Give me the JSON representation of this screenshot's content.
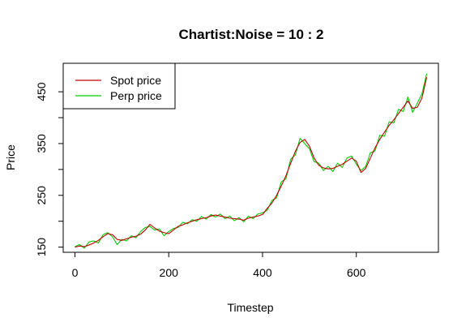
{
  "chart_data": {
    "type": "line",
    "title": "Chartist:Noise = 10 : 2",
    "xlabel": "Timestep",
    "ylabel": "Price",
    "xlim": [
      -25,
      775
    ],
    "ylim": [
      140,
      505
    ],
    "xticks": [
      0,
      200,
      400,
      600
    ],
    "xtick_labels": [
      "0",
      "200",
      "400",
      "600"
    ],
    "yticks": [
      150,
      200,
      250,
      300,
      350,
      400,
      450
    ],
    "ytick_labels": [
      "150",
      "",
      "250",
      "",
      "350",
      "",
      "450"
    ],
    "grid": false,
    "legend_position": "top-left",
    "series": [
      {
        "name": "Spot price",
        "color": "#c00000",
        "x": [
          0,
          10,
          20,
          30,
          40,
          50,
          60,
          70,
          80,
          90,
          100,
          110,
          120,
          130,
          140,
          150,
          160,
          170,
          180,
          190,
          200,
          210,
          220,
          230,
          240,
          250,
          260,
          270,
          280,
          290,
          300,
          310,
          320,
          330,
          340,
          350,
          360,
          370,
          380,
          390,
          400,
          410,
          420,
          430,
          440,
          450,
          460,
          470,
          480,
          490,
          500,
          510,
          520,
          530,
          540,
          550,
          560,
          570,
          580,
          590,
          600,
          610,
          620,
          630,
          640,
          650,
          660,
          670,
          680,
          690,
          700,
          710,
          720,
          730,
          740,
          750
        ],
        "values": [
          150,
          152,
          151,
          154,
          158,
          163,
          170,
          176,
          174,
          165,
          163,
          166,
          169,
          171,
          175,
          183,
          194,
          187,
          181,
          178,
          176,
          183,
          190,
          193,
          197,
          200,
          203,
          205,
          207,
          210,
          212,
          210,
          208,
          206,
          205,
          204,
          202,
          206,
          208,
          210,
          213,
          225,
          235,
          250,
          268,
          288,
          312,
          335,
          352,
          358,
          345,
          322,
          308,
          303,
          301,
          302,
          306,
          310,
          316,
          322,
          316,
          294,
          302,
          322,
          342,
          358,
          372,
          385,
          396,
          408,
          420,
          432,
          418,
          420,
          438,
          478
        ]
      },
      {
        "name": "Perp price",
        "color": "#00cc00",
        "x": [
          0,
          10,
          20,
          30,
          40,
          50,
          60,
          70,
          80,
          90,
          100,
          110,
          120,
          130,
          140,
          150,
          160,
          170,
          180,
          190,
          200,
          210,
          220,
          230,
          240,
          250,
          260,
          270,
          280,
          290,
          300,
          310,
          320,
          330,
          340,
          350,
          360,
          370,
          380,
          390,
          400,
          410,
          420,
          430,
          440,
          450,
          460,
          470,
          480,
          490,
          500,
          510,
          520,
          530,
          540,
          550,
          560,
          570,
          580,
          590,
          600,
          610,
          620,
          630,
          640,
          650,
          660,
          670,
          680,
          690,
          700,
          710,
          720,
          730,
          740,
          750
        ],
        "values": [
          151,
          155,
          148,
          160,
          162,
          158,
          174,
          178,
          170,
          155,
          165,
          162,
          172,
          168,
          180,
          188,
          190,
          183,
          185,
          172,
          180,
          186,
          188,
          198,
          195,
          203,
          200,
          209,
          204,
          213,
          208,
          214,
          205,
          210,
          201,
          207,
          199,
          210,
          205,
          214,
          216,
          221,
          240,
          245,
          276,
          282,
          320,
          328,
          360,
          350,
          340,
          315,
          312,
          298,
          306,
          296,
          312,
          304,
          322,
          326,
          310,
          298,
          306,
          332,
          336,
          366,
          364,
          392,
          390,
          416,
          412,
          440,
          410,
          428,
          446,
          485
        ]
      }
    ]
  }
}
